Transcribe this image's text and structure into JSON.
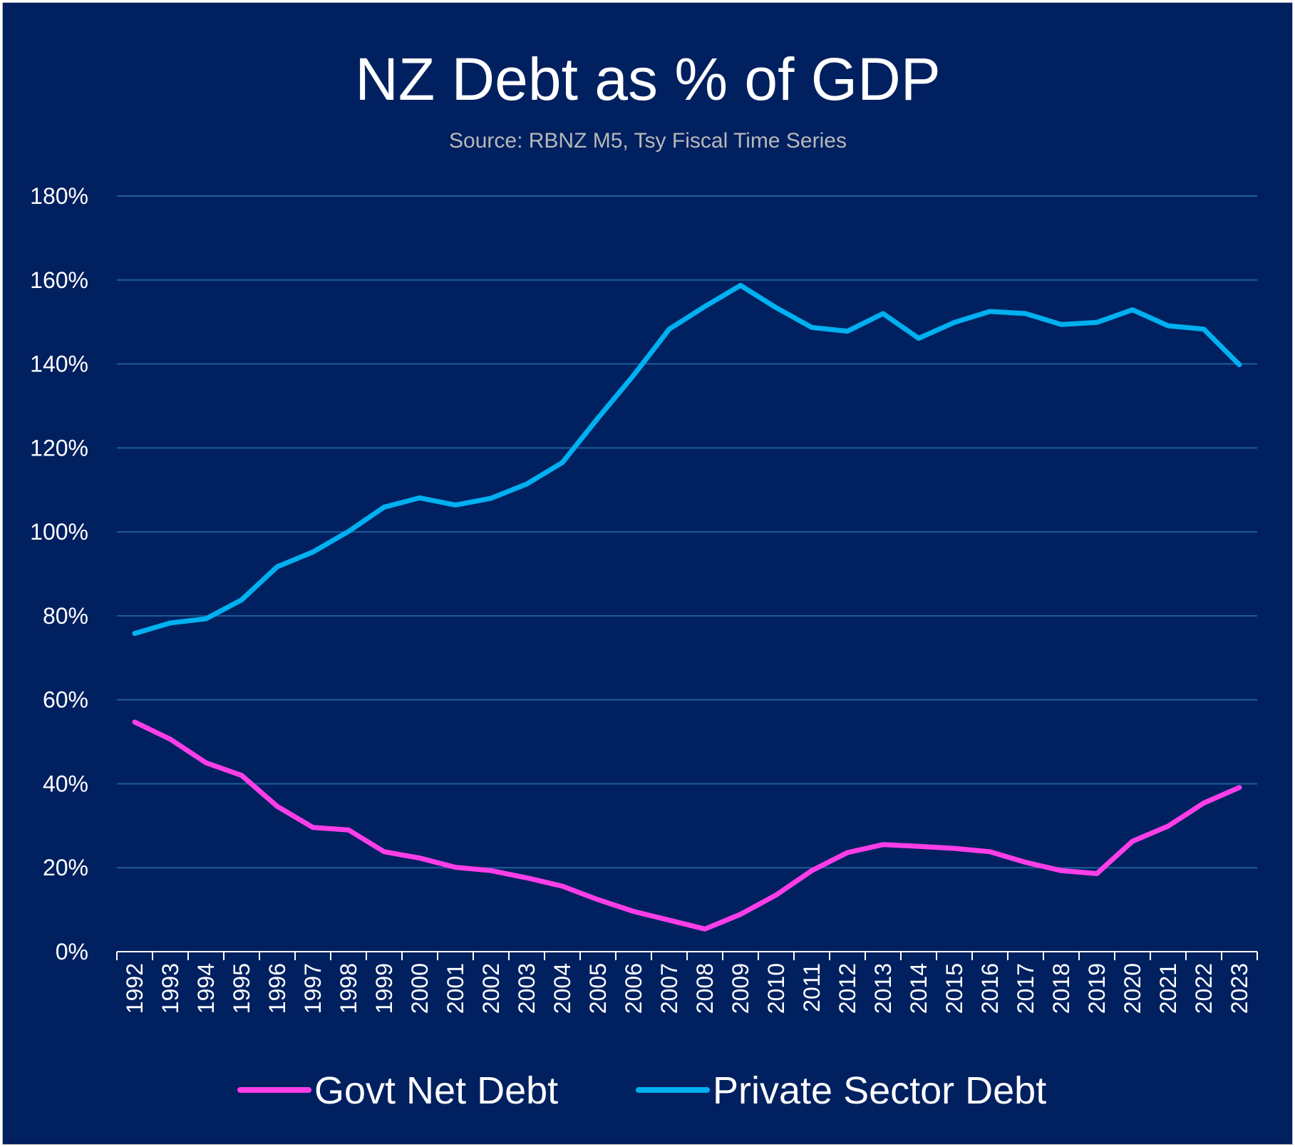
{
  "colors": {
    "background": "#002060",
    "gridline": "#1f5c99",
    "axis": "#ffffff",
    "text": "#ffffff",
    "subtitle": "#b8b8b8"
  },
  "chart_data": {
    "type": "line",
    "title": "NZ Debt as % of GDP",
    "subtitle": "Source: RBNZ M5, Tsy Fiscal Time Series",
    "xlabel": "",
    "ylabel": "",
    "ylim": [
      0,
      180
    ],
    "y_ticks": [
      0,
      20,
      40,
      60,
      80,
      100,
      120,
      140,
      160,
      180
    ],
    "y_tick_labels": [
      "0%",
      "20%",
      "40%",
      "60%",
      "80%",
      "100%",
      "120%",
      "140%",
      "160%",
      "180%"
    ],
    "categories": [
      "1992",
      "1993",
      "1994",
      "1995",
      "1996",
      "1997",
      "1998",
      "1999",
      "2000",
      "2001",
      "2002",
      "2003",
      "2004",
      "2005",
      "2006",
      "2007",
      "2008",
      "2009",
      "2010",
      "2011",
      "2012",
      "2013",
      "2014",
      "2015",
      "2016",
      "2017",
      "2018",
      "2019",
      "2020",
      "2021",
      "2022",
      "2023"
    ],
    "grid": true,
    "legend_position": "bottom",
    "series": [
      {
        "name": "Govt Net Debt",
        "color": "#ff3ee8",
        "values": [
          54.7,
          50.6,
          45.0,
          42.0,
          34.6,
          29.6,
          29.0,
          23.8,
          22.3,
          20.1,
          19.3,
          17.6,
          15.6,
          12.4,
          9.6,
          7.5,
          5.4,
          8.9,
          13.5,
          19.3,
          23.6,
          25.5,
          25.1,
          24.6,
          23.8,
          21.3,
          19.3,
          18.6,
          26.3,
          29.9,
          35.4,
          39.1
        ]
      },
      {
        "name": "Private Sector Debt",
        "color": "#00b0f0",
        "values": [
          75.8,
          78.3,
          79.3,
          83.8,
          91.7,
          95.2,
          100.1,
          105.9,
          108.1,
          106.4,
          108.0,
          111.4,
          116.5,
          127.1,
          137.3,
          148.3,
          153.7,
          158.7,
          153.4,
          148.7,
          147.8,
          152.0,
          146.1,
          149.9,
          152.5,
          152.0,
          149.4,
          149.9,
          152.9,
          149.1,
          148.3,
          139.8
        ]
      }
    ]
  }
}
